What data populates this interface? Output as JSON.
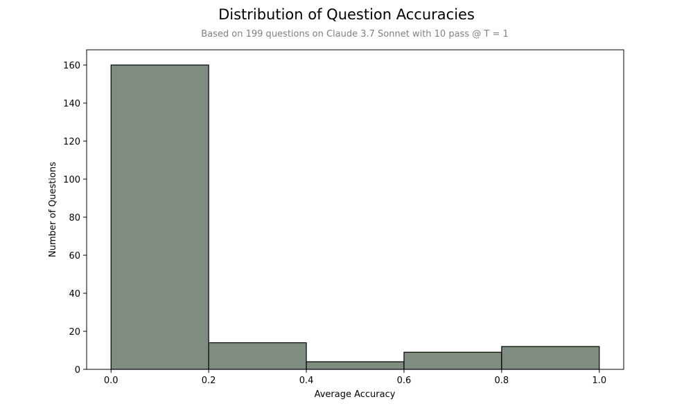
{
  "chart_data": {
    "type": "bar",
    "title": "Distribution of Question Accuracies",
    "subtitle": "Based on 199 questions on Claude 3.7 Sonnet with 10 pass @ T = 1",
    "xlabel": "Average Accuracy",
    "ylabel": "Number of Questions",
    "bins": [
      {
        "start": 0.0,
        "end": 0.2,
        "count": 160
      },
      {
        "start": 0.2,
        "end": 0.4,
        "count": 14
      },
      {
        "start": 0.4,
        "end": 0.6,
        "count": 4
      },
      {
        "start": 0.6,
        "end": 0.8,
        "count": 9
      },
      {
        "start": 0.8,
        "end": 1.0,
        "count": 12
      }
    ],
    "xlim": [
      -0.05,
      1.05
    ],
    "ylim": [
      0,
      168
    ],
    "xticks": [
      0.0,
      0.2,
      0.4,
      0.6,
      0.8,
      1.0
    ],
    "xtick_labels": [
      "0.0",
      "0.2",
      "0.4",
      "0.6",
      "0.8",
      "1.0"
    ],
    "yticks": [
      0,
      20,
      40,
      60,
      80,
      100,
      120,
      140,
      160
    ],
    "ytick_labels": [
      "0",
      "20",
      "40",
      "60",
      "80",
      "100",
      "120",
      "140",
      "160"
    ],
    "bar_color": "#7f8c80",
    "edge_color": "#000000",
    "grid": false,
    "legend": "none"
  }
}
